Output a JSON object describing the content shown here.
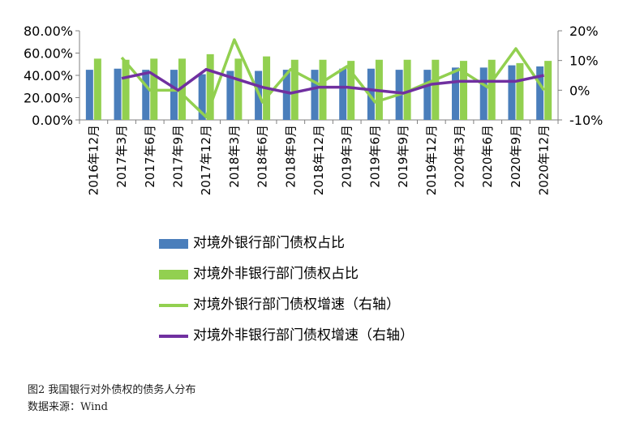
{
  "figure": {
    "caption": "图2   我国银行对外债权的债务人分布",
    "source": "数据来源：Wind"
  },
  "chart_data": {
    "type": "bar",
    "categories": [
      "2016年12月",
      "2017年3月",
      "2017年6月",
      "2017年9月",
      "2017年12月",
      "2018年3月",
      "2018年6月",
      "2018年9月",
      "2018年12月",
      "2019年3月",
      "2019年6月",
      "2019年9月",
      "2019年12月",
      "2020年3月",
      "2020年6月",
      "2020年9月",
      "2020年12月"
    ],
    "y_left": {
      "ylim": [
        0,
        80
      ],
      "ticks": [
        0,
        20,
        40,
        60,
        80
      ],
      "tick_labels": [
        "0.00%",
        "20.00%",
        "40.00%",
        "60.00%",
        "80.00%"
      ]
    },
    "y_right": {
      "ylim": [
        -10,
        20
      ],
      "ticks": [
        -10,
        0,
        10,
        20
      ],
      "tick_labels": [
        "-10%",
        "0%",
        "10%",
        "20%"
      ]
    },
    "grid": false,
    "legend_position": "bottom",
    "series": [
      {
        "name": "对境外银行部门债权占比",
        "kind": "bar",
        "axis": "left",
        "color": "#4a7ebb",
        "values": [
          45,
          46,
          45,
          45,
          41,
          44,
          44,
          45,
          45,
          46,
          46,
          45,
          45,
          47,
          47,
          49,
          48
        ]
      },
      {
        "name": "对境外非银行部门债权占比",
        "kind": "bar",
        "axis": "left",
        "color": "#92d050",
        "values": [
          55,
          54,
          55,
          55,
          59,
          55,
          57,
          54,
          54,
          53,
          54,
          54,
          54,
          53,
          54,
          51,
          53
        ]
      },
      {
        "name": "对境外银行部门债权增速（右轴）",
        "kind": "line",
        "axis": "right",
        "color": "#92d050",
        "values": [
          null,
          11,
          0,
          0,
          -9,
          17,
          -4,
          7,
          2,
          8,
          -4,
          -1,
          3,
          7,
          1,
          14,
          0
        ]
      },
      {
        "name": "对境外非银行部门债权增速（右轴）",
        "kind": "line",
        "axis": "right",
        "color": "#7030a0",
        "values": [
          null,
          4,
          6,
          0,
          7,
          4,
          1,
          -1,
          1,
          1,
          0,
          -1,
          2,
          3,
          3,
          3,
          5
        ]
      }
    ]
  }
}
